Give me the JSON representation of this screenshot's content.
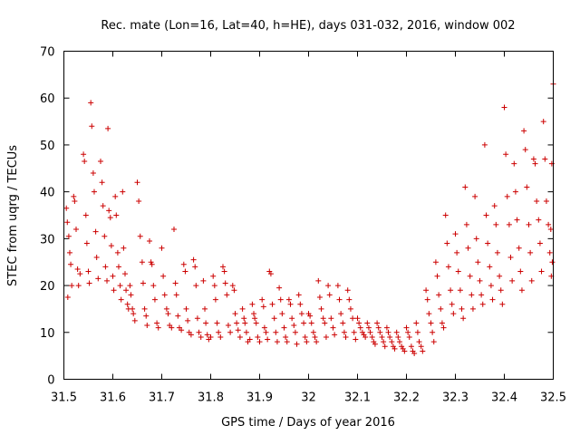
{
  "chart_data": {
    "type": "scatter",
    "title": "Rec. mate (Lon=16, Lat=40, h=HE), days 031-032, 2016, window 002",
    "xlabel": "GPS time / Days of year 2016",
    "ylabel": "STEC from uqrg / TECUs",
    "xlim": [
      31.5,
      32.5
    ],
    "ylim": [
      0,
      70
    ],
    "x_ticks": [
      "31.5",
      "31.6",
      "31.7",
      "31.8",
      "31.9",
      "32",
      "32.1",
      "32.2",
      "32.3",
      "32.4",
      "32.5"
    ],
    "y_ticks": [
      "0",
      "10",
      "20",
      "30",
      "40",
      "50",
      "60",
      "70"
    ],
    "marker": "plus",
    "color": "#cc0000",
    "grid": false,
    "points": [
      [
        31.505,
        36.5
      ],
      [
        31.507,
        33.5
      ],
      [
        31.51,
        30.5
      ],
      [
        31.512,
        27
      ],
      [
        31.514,
        24.5
      ],
      [
        31.516,
        20
      ],
      [
        31.508,
        17.5
      ],
      [
        31.52,
        39
      ],
      [
        31.522,
        38
      ],
      [
        31.525,
        32
      ],
      [
        31.528,
        23.5
      ],
      [
        31.53,
        20
      ],
      [
        31.533,
        22.5
      ],
      [
        31.54,
        48
      ],
      [
        31.542,
        46.5
      ],
      [
        31.545,
        35
      ],
      [
        31.547,
        29
      ],
      [
        31.55,
        23
      ],
      [
        31.552,
        20.5
      ],
      [
        31.555,
        59
      ],
      [
        31.557,
        54
      ],
      [
        31.56,
        44
      ],
      [
        31.562,
        40
      ],
      [
        31.565,
        31.5
      ],
      [
        31.567,
        26
      ],
      [
        31.57,
        21.5
      ],
      [
        31.575,
        46.5
      ],
      [
        31.578,
        42
      ],
      [
        31.58,
        37
      ],
      [
        31.583,
        30.5
      ],
      [
        31.585,
        24
      ],
      [
        31.588,
        21
      ],
      [
        31.59,
        53.5
      ],
      [
        31.592,
        36
      ],
      [
        31.595,
        34.5
      ],
      [
        31.597,
        28.5
      ],
      [
        31.6,
        22
      ],
      [
        31.602,
        19
      ],
      [
        31.605,
        39
      ],
      [
        31.607,
        35
      ],
      [
        31.61,
        27
      ],
      [
        31.612,
        24
      ],
      [
        31.615,
        20
      ],
      [
        31.617,
        17
      ],
      [
        31.62,
        40
      ],
      [
        31.622,
        28
      ],
      [
        31.625,
        22.5
      ],
      [
        31.627,
        19
      ],
      [
        31.63,
        16
      ],
      [
        31.632,
        15
      ],
      [
        31.635,
        20
      ],
      [
        31.637,
        18
      ],
      [
        31.64,
        15
      ],
      [
        31.642,
        14
      ],
      [
        31.645,
        12.5
      ],
      [
        31.65,
        42
      ],
      [
        31.653,
        38
      ],
      [
        31.656,
        30.5
      ],
      [
        31.66,
        25
      ],
      [
        31.662,
        20.5
      ],
      [
        31.665,
        15
      ],
      [
        31.668,
        13.5
      ],
      [
        31.67,
        11.5
      ],
      [
        31.675,
        29.5
      ],
      [
        31.678,
        25
      ],
      [
        31.68,
        24.5
      ],
      [
        31.683,
        20
      ],
      [
        31.686,
        17
      ],
      [
        31.69,
        12
      ],
      [
        31.693,
        11
      ],
      [
        31.7,
        28
      ],
      [
        31.703,
        22
      ],
      [
        31.706,
        18
      ],
      [
        31.71,
        15
      ],
      [
        31.713,
        14
      ],
      [
        31.716,
        11.5
      ],
      [
        31.72,
        11
      ],
      [
        31.725,
        32
      ],
      [
        31.728,
        20.5
      ],
      [
        31.73,
        18
      ],
      [
        31.733,
        13.5
      ],
      [
        31.736,
        11
      ],
      [
        31.74,
        10.5
      ],
      [
        31.745,
        24.5
      ],
      [
        31.748,
        23
      ],
      [
        31.75,
        15
      ],
      [
        31.753,
        12.5
      ],
      [
        31.756,
        10
      ],
      [
        31.76,
        9.5
      ],
      [
        31.765,
        25.5
      ],
      [
        31.768,
        24
      ],
      [
        31.77,
        20
      ],
      [
        31.773,
        13
      ],
      [
        31.776,
        10
      ],
      [
        31.78,
        9
      ],
      [
        31.785,
        21
      ],
      [
        31.788,
        15
      ],
      [
        31.79,
        12
      ],
      [
        31.793,
        9.5
      ],
      [
        31.796,
        8.5
      ],
      [
        31.8,
        9
      ],
      [
        31.805,
        22
      ],
      [
        31.808,
        20
      ],
      [
        31.81,
        17
      ],
      [
        31.813,
        12
      ],
      [
        31.816,
        10
      ],
      [
        31.82,
        9
      ],
      [
        31.825,
        24
      ],
      [
        31.828,
        23
      ],
      [
        31.83,
        20.5
      ],
      [
        31.833,
        18
      ],
      [
        31.836,
        11.5
      ],
      [
        31.84,
        10
      ],
      [
        31.845,
        20
      ],
      [
        31.848,
        19
      ],
      [
        31.85,
        14
      ],
      [
        31.853,
        12
      ],
      [
        31.856,
        10.5
      ],
      [
        31.86,
        9
      ],
      [
        31.865,
        15
      ],
      [
        31.868,
        13
      ],
      [
        31.87,
        12
      ],
      [
        31.873,
        10
      ],
      [
        31.876,
        8
      ],
      [
        31.88,
        8.5
      ],
      [
        31.885,
        16
      ],
      [
        31.888,
        14
      ],
      [
        31.89,
        13
      ],
      [
        31.893,
        12
      ],
      [
        31.896,
        9
      ],
      [
        31.9,
        8
      ],
      [
        31.905,
        17
      ],
      [
        31.908,
        15.5
      ],
      [
        31.91,
        11
      ],
      [
        31.913,
        10
      ],
      [
        31.916,
        8.5
      ],
      [
        31.92,
        23
      ],
      [
        31.923,
        22.5
      ],
      [
        31.926,
        16
      ],
      [
        31.93,
        13
      ],
      [
        31.933,
        10
      ],
      [
        31.936,
        8
      ],
      [
        31.94,
        19.5
      ],
      [
        31.943,
        17
      ],
      [
        31.946,
        14
      ],
      [
        31.95,
        11
      ],
      [
        31.953,
        9
      ],
      [
        31.956,
        8
      ],
      [
        31.96,
        17
      ],
      [
        31.963,
        16
      ],
      [
        31.966,
        13
      ],
      [
        31.97,
        11.5
      ],
      [
        31.973,
        10
      ],
      [
        31.976,
        7.5
      ],
      [
        31.98,
        18
      ],
      [
        31.983,
        16
      ],
      [
        31.986,
        14
      ],
      [
        31.99,
        12
      ],
      [
        31.993,
        9
      ],
      [
        31.996,
        8
      ],
      [
        32.0,
        14
      ],
      [
        32.003,
        13.5
      ],
      [
        32.006,
        12
      ],
      [
        32.01,
        10
      ],
      [
        32.013,
        9
      ],
      [
        32.016,
        8
      ],
      [
        32.02,
        21
      ],
      [
        32.023,
        17.5
      ],
      [
        32.026,
        15
      ],
      [
        32.03,
        13
      ],
      [
        32.033,
        12
      ],
      [
        32.036,
        9
      ],
      [
        32.04,
        20
      ],
      [
        32.043,
        18
      ],
      [
        32.046,
        13
      ],
      [
        32.05,
        11
      ],
      [
        32.053,
        9.5
      ],
      [
        32.06,
        20
      ],
      [
        32.063,
        17
      ],
      [
        32.066,
        14
      ],
      [
        32.07,
        12
      ],
      [
        32.073,
        10
      ],
      [
        32.076,
        9
      ],
      [
        32.08,
        19
      ],
      [
        32.083,
        17
      ],
      [
        32.086,
        15
      ],
      [
        32.09,
        13
      ],
      [
        32.093,
        10
      ],
      [
        32.096,
        8.5
      ],
      [
        32.1,
        13
      ],
      [
        32.103,
        12
      ],
      [
        32.106,
        11
      ],
      [
        32.11,
        10
      ],
      [
        32.113,
        9.5
      ],
      [
        32.116,
        9
      ],
      [
        32.12,
        12
      ],
      [
        32.123,
        11
      ],
      [
        32.126,
        10
      ],
      [
        32.13,
        9
      ],
      [
        32.133,
        8
      ],
      [
        32.136,
        7.5
      ],
      [
        32.14,
        12
      ],
      [
        32.143,
        11
      ],
      [
        32.146,
        10
      ],
      [
        32.15,
        9
      ],
      [
        32.153,
        8
      ],
      [
        32.156,
        7
      ],
      [
        32.16,
        11
      ],
      [
        32.163,
        10
      ],
      [
        32.166,
        9
      ],
      [
        32.17,
        8
      ],
      [
        32.173,
        7
      ],
      [
        32.176,
        6.5
      ],
      [
        32.18,
        10
      ],
      [
        32.183,
        9
      ],
      [
        32.186,
        8
      ],
      [
        32.19,
        7
      ],
      [
        32.193,
        6.5
      ],
      [
        32.196,
        6
      ],
      [
        32.2,
        11
      ],
      [
        32.203,
        10
      ],
      [
        32.206,
        9
      ],
      [
        32.21,
        7
      ],
      [
        32.213,
        6
      ],
      [
        32.216,
        5.5
      ],
      [
        32.22,
        12
      ],
      [
        32.223,
        10
      ],
      [
        32.226,
        8
      ],
      [
        32.23,
        7
      ],
      [
        32.233,
        6
      ],
      [
        32.24,
        19
      ],
      [
        32.243,
        17
      ],
      [
        32.246,
        14
      ],
      [
        32.25,
        12
      ],
      [
        32.253,
        10
      ],
      [
        32.256,
        8
      ],
      [
        32.26,
        25
      ],
      [
        32.263,
        22
      ],
      [
        32.266,
        18
      ],
      [
        32.27,
        15
      ],
      [
        32.273,
        12
      ],
      [
        32.276,
        11
      ],
      [
        32.28,
        35
      ],
      [
        32.283,
        29
      ],
      [
        32.286,
        24
      ],
      [
        32.29,
        19
      ],
      [
        32.293,
        16
      ],
      [
        32.296,
        14
      ],
      [
        32.3,
        31
      ],
      [
        32.303,
        27
      ],
      [
        32.306,
        23
      ],
      [
        32.31,
        19
      ],
      [
        32.313,
        15
      ],
      [
        32.316,
        13
      ],
      [
        32.32,
        41
      ],
      [
        32.323,
        33
      ],
      [
        32.326,
        28
      ],
      [
        32.33,
        22
      ],
      [
        32.333,
        18
      ],
      [
        32.336,
        15
      ],
      [
        32.34,
        39
      ],
      [
        32.343,
        30
      ],
      [
        32.346,
        25
      ],
      [
        32.35,
        21
      ],
      [
        32.353,
        18
      ],
      [
        32.356,
        16
      ],
      [
        32.36,
        50
      ],
      [
        32.363,
        35
      ],
      [
        32.366,
        29
      ],
      [
        32.37,
        24
      ],
      [
        32.373,
        20
      ],
      [
        32.376,
        17
      ],
      [
        32.38,
        37
      ],
      [
        32.383,
        33
      ],
      [
        32.386,
        27
      ],
      [
        32.39,
        22
      ],
      [
        32.393,
        19
      ],
      [
        32.396,
        16
      ],
      [
        32.4,
        58
      ],
      [
        32.403,
        48
      ],
      [
        32.406,
        39
      ],
      [
        32.41,
        33
      ],
      [
        32.413,
        26
      ],
      [
        32.416,
        21
      ],
      [
        32.42,
        46
      ],
      [
        32.423,
        40
      ],
      [
        32.426,
        34
      ],
      [
        32.43,
        28
      ],
      [
        32.433,
        23
      ],
      [
        32.436,
        19
      ],
      [
        32.44,
        53
      ],
      [
        32.443,
        49
      ],
      [
        32.446,
        41
      ],
      [
        32.45,
        33
      ],
      [
        32.453,
        27
      ],
      [
        32.456,
        21
      ],
      [
        32.46,
        47
      ],
      [
        32.463,
        46
      ],
      [
        32.466,
        38
      ],
      [
        32.47,
        34
      ],
      [
        32.473,
        29
      ],
      [
        32.476,
        23
      ],
      [
        32.48,
        55
      ],
      [
        32.483,
        47
      ],
      [
        32.486,
        38
      ],
      [
        32.49,
        33
      ],
      [
        32.493,
        27
      ],
      [
        32.496,
        22
      ],
      [
        32.5,
        63
      ],
      [
        32.497,
        46
      ],
      [
        32.495,
        32
      ],
      [
        32.498,
        25
      ]
    ]
  }
}
